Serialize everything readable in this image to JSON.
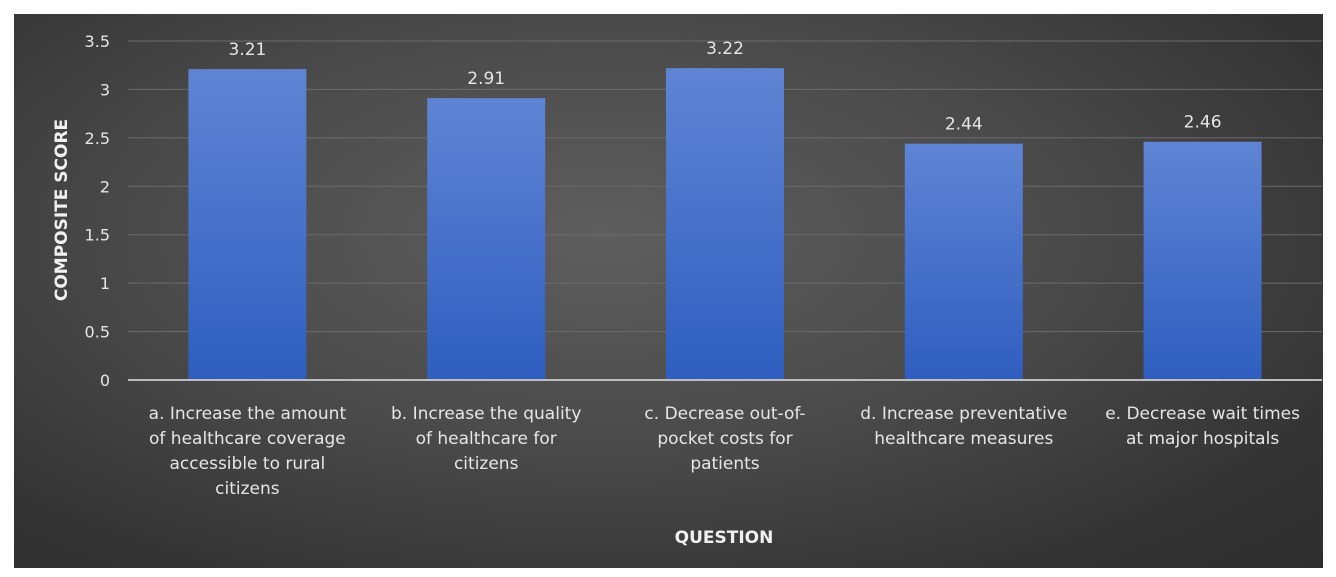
{
  "chart_data": {
    "type": "bar",
    "title": "",
    "xlabel": "QUESTION",
    "ylabel": "COMPOSITE SCORE",
    "ylim": [
      0,
      3.5
    ],
    "yticks": [
      "0",
      "0.5",
      "1",
      "1.5",
      "2",
      "2.5",
      "3",
      "3.5"
    ],
    "grid": true,
    "legend": "none",
    "categories": [
      [
        "a. Increase the amount",
        "of healthcare coverage",
        "accessible to rural",
        "citizens"
      ],
      [
        "b. Increase the quality",
        "of healthcare for",
        "citizens"
      ],
      [
        "c. Decrease out-of-",
        "pocket costs for",
        "patients"
      ],
      [
        "d. Increase preventative",
        "healthcare measures"
      ],
      [
        "e. Decrease wait times",
        "at major hospitals"
      ]
    ],
    "values": [
      3.21,
      2.91,
      3.22,
      2.44,
      2.46
    ],
    "data_labels": [
      "3.21",
      "2.91",
      "3.22",
      "2.44",
      "2.46"
    ],
    "colors": {
      "bar_top": "#5f84d4",
      "bar_bottom": "#2f5ec0",
      "background": "#474747",
      "text": "#e6e6e6"
    }
  }
}
